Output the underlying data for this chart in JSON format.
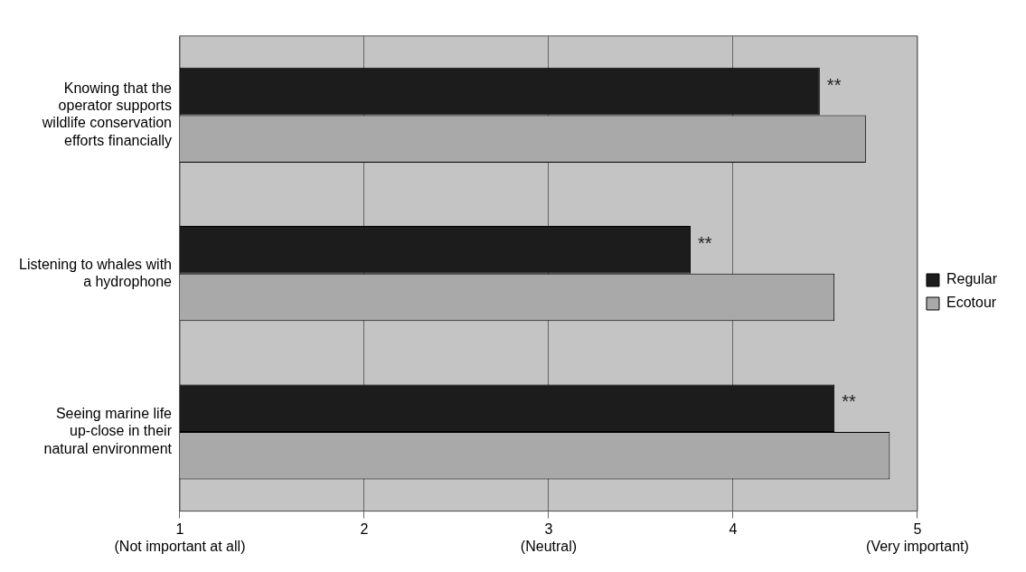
{
  "chart_data": {
    "type": "bar",
    "orientation": "horizontal",
    "categories": [
      "Knowing that the operator supports wildlife conservation efforts financially",
      "Listening to whales with a hydrophone",
      "Seeing marine life up-close in their natural environment"
    ],
    "series": [
      {
        "name": "Regular",
        "color": "#1c1c1c",
        "values": [
          4.47,
          3.77,
          4.55
        ]
      },
      {
        "name": "Ecotour",
        "color": "#a9a9a9",
        "values": [
          4.72,
          4.55,
          4.85
        ]
      }
    ],
    "xlim": [
      1,
      5
    ],
    "xticks": [
      {
        "value": 1,
        "label": "1\n(Not important at all)"
      },
      2,
      {
        "value": 3,
        "label": "3\n(Neutral)"
      },
      4,
      {
        "value": 5,
        "label": "5\n(Very important)"
      }
    ],
    "grid": "x",
    "legend": "right",
    "annotations": [
      {
        "text": "**",
        "x": 4.47,
        "y": "Knowing that the operator supports wildlife conservation efforts financially"
      },
      {
        "text": "**",
        "x": 3.77,
        "y": "Listening to whales with a hydrophone"
      },
      {
        "text": "**",
        "x": 4.55,
        "y": "Seeing marine life up-close in their natural environment"
      }
    ]
  }
}
